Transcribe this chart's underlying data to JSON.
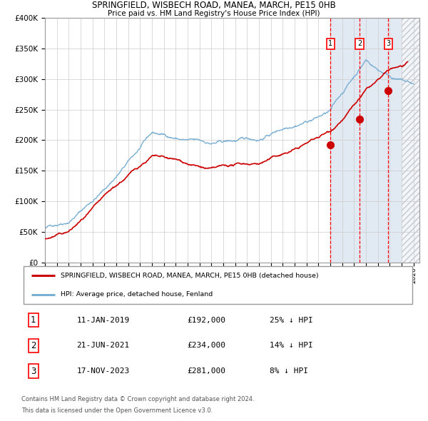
{
  "title1": "SPRINGFIELD, WISBECH ROAD, MANEA, MARCH, PE15 0HB",
  "title2": "Price paid vs. HM Land Registry's House Price Index (HPI)",
  "legend_line1": "SPRINGFIELD, WISBECH ROAD, MANEA, MARCH, PE15 0HB (detached house)",
  "legend_line2": "HPI: Average price, detached house, Fenland",
  "footer1": "Contains HM Land Registry data © Crown copyright and database right 2024.",
  "footer2": "This data is licensed under the Open Government Licence v3.0.",
  "hpi_color": "#7aafd4",
  "price_color": "#cc0000",
  "background_color": "#ffffff",
  "plot_bg_color": "#ffffff",
  "shaded_color": "#dce6f1",
  "ylim": [
    0,
    400000
  ],
  "yticks": [
    0,
    50000,
    100000,
    150000,
    200000,
    250000,
    300000,
    350000,
    400000
  ],
  "xlim_start": 1995.0,
  "xlim_end": 2026.5,
  "transactions": [
    {
      "num": 1,
      "date": "11-JAN-2019",
      "date_float": 2019.03,
      "price": 192000,
      "label": "25% ↓ HPI"
    },
    {
      "num": 2,
      "date": "21-JUN-2021",
      "date_float": 2021.47,
      "price": 234000,
      "label": "14% ↓ HPI"
    },
    {
      "num": 3,
      "date": "17-NOV-2023",
      "date_float": 2023.88,
      "price": 281000,
      "label": "8% ↓ HPI"
    }
  ]
}
